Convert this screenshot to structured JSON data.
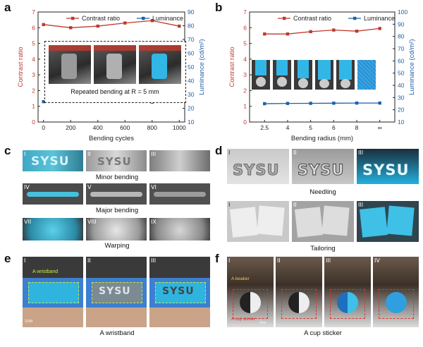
{
  "figure": {
    "panel_labels": [
      "a",
      "b",
      "c",
      "d",
      "e",
      "f"
    ],
    "sysu_text": "SYSU",
    "roman": [
      "I",
      "II",
      "III",
      "IV",
      "V",
      "VI",
      "VII",
      "VIII",
      "IX"
    ],
    "roman4": [
      "I",
      "II",
      "III",
      "IV"
    ]
  },
  "panel_a": {
    "legend_contrast": "Contrast ratio",
    "legend_luminance": "Luminance",
    "inset_caption": "Repeated bending at R = 5 mm"
  },
  "panel_b": {
    "legend_contrast": "Contrast ratio",
    "legend_luminance": "Luminance"
  },
  "panel_c": {
    "captions": [
      "Minor bending",
      "Major bending",
      "Warping"
    ]
  },
  "panel_d": {
    "captions": [
      "Needling",
      "Tailoring"
    ]
  },
  "panel_e": {
    "caption": "A wristband",
    "overlay_label": "A wristband",
    "scale_label": "1cm"
  },
  "panel_f": {
    "caption": "A cup sticker",
    "overlay_label": "A beaker",
    "overlay_label2": "A cup sticker",
    "scale_label": "2cm"
  },
  "colors": {
    "contrast": "#c0392b",
    "luminance": "#1f5fa8",
    "glow": "#32b6e6",
    "dash_green": "#c7e84a"
  },
  "chart_data": [
    {
      "type": "line",
      "panel": "a",
      "xlabel": "Bending cycles",
      "ylabel_left": "Contrast ratio",
      "ylabel_right": "Luminance (cd/m²)",
      "x": [
        0,
        200,
        400,
        600,
        800,
        1000
      ],
      "x_ticks": [
        "0",
        "200",
        "400",
        "600",
        "800",
        "1000"
      ],
      "xlim": [
        -40,
        1040
      ],
      "ylim_left": [
        0,
        7
      ],
      "ylim_right": [
        10,
        90
      ],
      "y_ticks_left": [
        "0",
        "1",
        "2",
        "3",
        "4",
        "5",
        "6",
        "7"
      ],
      "y_ticks_right": [
        "10",
        "20",
        "30",
        "40",
        "50",
        "60",
        "70",
        "80",
        "90"
      ],
      "series": [
        {
          "name": "Contrast ratio",
          "axis": "left",
          "values": [
            6.2,
            6.0,
            6.1,
            6.3,
            6.45,
            6.1
          ]
        },
        {
          "name": "Luminance",
          "axis": "right",
          "values": [
            24.8,
            25.5,
            25.0,
            25.2,
            24.5,
            25.0
          ]
        }
      ]
    },
    {
      "type": "line",
      "panel": "b",
      "xlabel": "Bending radius (mm)",
      "ylabel_left": "Contrast ratio",
      "ylabel_right": "Luminance (cd/m²)",
      "categories": [
        "2.5",
        "4",
        "5",
        "6",
        "8",
        "∞"
      ],
      "ylim_left": [
        0,
        7
      ],
      "ylim_right": [
        10,
        100
      ],
      "y_ticks_left": [
        "0",
        "1",
        "2",
        "3",
        "4",
        "5",
        "6",
        "7"
      ],
      "y_ticks_right": [
        "10",
        "20",
        "30",
        "40",
        "50",
        "60",
        "70",
        "80",
        "90",
        "100"
      ],
      "series": [
        {
          "name": "Contrast ratio",
          "axis": "left",
          "values": [
            5.6,
            5.6,
            5.75,
            5.85,
            5.78,
            5.95
          ]
        },
        {
          "name": "Luminance",
          "axis": "right",
          "values": [
            25.0,
            25.2,
            25.3,
            25.4,
            25.5,
            25.5
          ]
        }
      ]
    }
  ]
}
